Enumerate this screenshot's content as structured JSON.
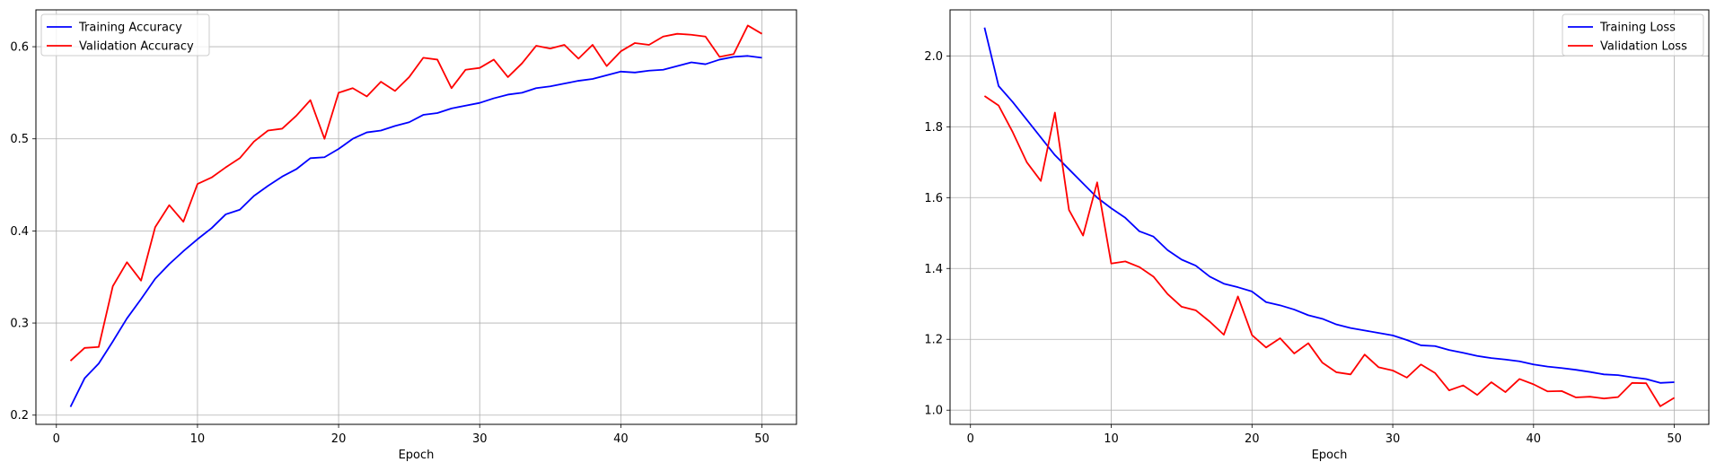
{
  "chart_data": [
    {
      "type": "line",
      "title": "",
      "xlabel": "Epoch",
      "ylabel": "",
      "xlim": [
        -1.45,
        52.45
      ],
      "ylim": [
        0.19,
        0.64
      ],
      "xticks": [
        0,
        10,
        20,
        30,
        40,
        50
      ],
      "yticks": [
        0.2,
        0.3,
        0.4,
        0.5,
        0.6
      ],
      "ytick_labels": [
        "0.2",
        "0.3",
        "0.4",
        "0.5",
        "0.6"
      ],
      "grid": true,
      "legend_position": "top-left",
      "x": [
        1,
        2,
        3,
        4,
        5,
        6,
        7,
        8,
        9,
        10,
        11,
        12,
        13,
        14,
        15,
        16,
        17,
        18,
        19,
        20,
        21,
        22,
        23,
        24,
        25,
        26,
        27,
        28,
        29,
        30,
        31,
        32,
        33,
        34,
        35,
        36,
        37,
        38,
        39,
        40,
        41,
        42,
        43,
        44,
        45,
        46,
        47,
        48,
        49,
        50
      ],
      "series": [
        {
          "name": "Training Accuracy",
          "color": "#0000ff",
          "values": [
            0.209,
            0.24,
            0.256,
            0.28,
            0.305,
            0.326,
            0.348,
            0.364,
            0.378,
            0.391,
            0.403,
            0.418,
            0.423,
            0.438,
            0.449,
            0.459,
            0.467,
            0.479,
            0.48,
            0.489,
            0.5,
            0.507,
            0.509,
            0.514,
            0.518,
            0.526,
            0.528,
            0.533,
            0.536,
            0.539,
            0.544,
            0.548,
            0.55,
            0.555,
            0.557,
            0.56,
            0.563,
            0.565,
            0.569,
            0.573,
            0.572,
            0.574,
            0.575,
            0.579,
            0.583,
            0.581,
            0.586,
            0.589,
            0.59,
            0.588
          ]
        },
        {
          "name": "Validation Accuracy",
          "color": "#ff0000",
          "values": [
            0.259,
            0.273,
            0.274,
            0.34,
            0.366,
            0.346,
            0.404,
            0.428,
            0.41,
            0.451,
            0.458,
            0.469,
            0.479,
            0.497,
            0.509,
            0.511,
            0.525,
            0.542,
            0.5,
            0.55,
            0.555,
            0.546,
            0.562,
            0.552,
            0.567,
            0.588,
            0.586,
            0.555,
            0.575,
            0.577,
            0.586,
            0.567,
            0.582,
            0.601,
            0.598,
            0.602,
            0.587,
            0.602,
            0.579,
            0.595,
            0.604,
            0.602,
            0.611,
            0.614,
            0.613,
            0.611,
            0.589,
            0.592,
            0.623,
            0.614
          ]
        }
      ]
    },
    {
      "type": "line",
      "title": "",
      "xlabel": "Epoch",
      "ylabel": "",
      "xlim": [
        -1.45,
        52.45
      ],
      "ylim": [
        0.96,
        2.13
      ],
      "xticks": [
        0,
        10,
        20,
        30,
        40,
        50
      ],
      "yticks": [
        1.0,
        1.2,
        1.4,
        1.6,
        1.8,
        2.0
      ],
      "ytick_labels": [
        "1.0",
        "1.2",
        "1.4",
        "1.6",
        "1.8",
        "2.0"
      ],
      "grid": true,
      "legend_position": "top-right",
      "x": [
        1,
        2,
        3,
        4,
        5,
        6,
        7,
        8,
        9,
        10,
        11,
        12,
        13,
        14,
        15,
        16,
        17,
        18,
        19,
        20,
        21,
        22,
        23,
        24,
        25,
        26,
        27,
        28,
        29,
        30,
        31,
        32,
        33,
        34,
        35,
        36,
        37,
        38,
        39,
        40,
        41,
        42,
        43,
        44,
        45,
        46,
        47,
        48,
        49,
        50
      ],
      "series": [
        {
          "name": "Training Loss",
          "color": "#0000ff",
          "values": [
            2.08,
            1.915,
            1.87,
            1.82,
            1.77,
            1.72,
            1.68,
            1.64,
            1.6,
            1.57,
            1.543,
            1.505,
            1.49,
            1.452,
            1.425,
            1.408,
            1.377,
            1.357,
            1.347,
            1.335,
            1.305,
            1.296,
            1.284,
            1.268,
            1.258,
            1.242,
            1.232,
            1.225,
            1.218,
            1.211,
            1.198,
            1.183,
            1.181,
            1.17,
            1.162,
            1.153,
            1.147,
            1.143,
            1.138,
            1.129,
            1.123,
            1.119,
            1.114,
            1.108,
            1.101,
            1.099,
            1.093,
            1.088,
            1.077,
            1.079
          ]
        },
        {
          "name": "Validation Loss",
          "color": "#ff0000",
          "values": [
            1.887,
            1.86,
            1.785,
            1.7,
            1.647,
            1.84,
            1.565,
            1.493,
            1.643,
            1.414,
            1.42,
            1.404,
            1.377,
            1.328,
            1.292,
            1.282,
            1.25,
            1.213,
            1.321,
            1.212,
            1.177,
            1.203,
            1.16,
            1.189,
            1.134,
            1.107,
            1.101,
            1.157,
            1.121,
            1.112,
            1.092,
            1.129,
            1.105,
            1.056,
            1.07,
            1.043,
            1.079,
            1.051,
            1.088,
            1.073,
            1.053,
            1.054,
            1.036,
            1.038,
            1.033,
            1.037,
            1.077,
            1.076,
            1.011,
            1.035
          ]
        }
      ]
    }
  ]
}
